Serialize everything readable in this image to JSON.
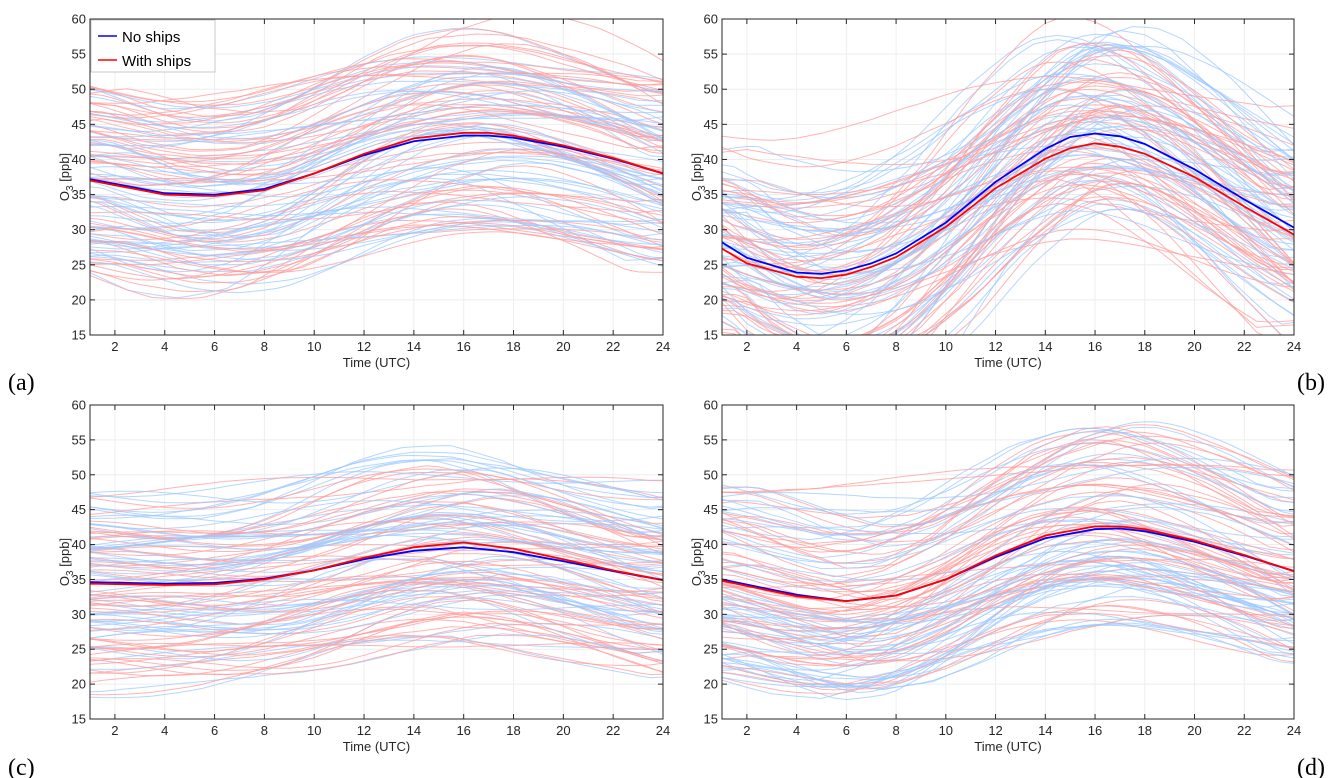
{
  "colors": {
    "no_ships": "#0000ff",
    "with_ships": "#ff0000",
    "ensemble_no_ships": "#9cc8ff",
    "ensemble_with_ships": "#ff9b9b",
    "grid": "#eeeeee"
  },
  "legend": {
    "location": "top-left of panel (a)",
    "entries": [
      "No ships",
      "With ships"
    ]
  },
  "chart_data": [
    {
      "type": "line",
      "panel_label": "(a)",
      "xlabel": "Time (UTC)",
      "ylabel": "O3 [ppb]",
      "xlim": [
        1,
        24
      ],
      "ylim": [
        15,
        60
      ],
      "xticks": [
        2,
        4,
        6,
        8,
        10,
        12,
        14,
        16,
        18,
        20,
        22,
        24
      ],
      "yticks": [
        15,
        20,
        25,
        30,
        35,
        40,
        45,
        50,
        55,
        60
      ],
      "x": [
        1,
        4,
        6,
        8,
        10,
        12,
        14,
        16,
        17,
        18,
        20,
        22,
        24
      ],
      "series": [
        {
          "name": "No ships",
          "values": [
            37.2,
            35.2,
            35.0,
            35.8,
            38.0,
            40.6,
            42.6,
            43.4,
            43.4,
            43.1,
            41.8,
            40.1,
            38.0
          ]
        },
        {
          "name": "With ships",
          "values": [
            37.0,
            35.0,
            34.8,
            35.6,
            38.0,
            40.8,
            43.0,
            43.8,
            43.8,
            43.4,
            42.0,
            40.2,
            38.0
          ]
        }
      ],
      "grid": true
    },
    {
      "type": "line",
      "panel_label": "(b)",
      "xlabel": "Time (UTC)",
      "ylabel": "O3 [ppb]",
      "xlim": [
        1,
        24
      ],
      "ylim": [
        15,
        60
      ],
      "xticks": [
        2,
        4,
        6,
        8,
        10,
        12,
        14,
        16,
        18,
        20,
        22,
        24
      ],
      "yticks": [
        15,
        20,
        25,
        30,
        35,
        40,
        45,
        50,
        55,
        60
      ],
      "x": [
        1,
        2,
        4,
        5,
        6,
        7,
        8,
        10,
        12,
        14,
        15,
        16,
        17,
        18,
        20,
        22,
        24
      ],
      "series": [
        {
          "name": "No ships",
          "values": [
            28.2,
            26.0,
            23.9,
            23.7,
            24.2,
            25.2,
            26.6,
            31.0,
            36.8,
            41.5,
            43.2,
            43.7,
            43.3,
            42.2,
            38.6,
            34.3,
            30.3
          ]
        },
        {
          "name": "With ships",
          "values": [
            27.3,
            25.2,
            23.3,
            23.1,
            23.6,
            24.7,
            26.1,
            30.4,
            35.9,
            40.1,
            41.6,
            42.3,
            41.8,
            40.8,
            37.5,
            33.3,
            29.3
          ]
        }
      ],
      "grid": true
    },
    {
      "type": "line",
      "panel_label": "(c)",
      "xlabel": "Time (UTC)",
      "ylabel": "O3 [ppb]",
      "xlim": [
        1,
        24
      ],
      "ylim": [
        15,
        60
      ],
      "xticks": [
        2,
        4,
        6,
        8,
        10,
        12,
        14,
        16,
        18,
        20,
        22,
        24
      ],
      "yticks": [
        15,
        20,
        25,
        30,
        35,
        40,
        45,
        50,
        55,
        60
      ],
      "x": [
        1,
        4,
        6,
        8,
        10,
        12,
        14,
        16,
        18,
        20,
        22,
        24
      ],
      "series": [
        {
          "name": "No ships",
          "values": [
            34.6,
            34.4,
            34.5,
            35.1,
            36.3,
            37.9,
            39.1,
            39.6,
            38.9,
            37.6,
            36.2,
            34.9
          ]
        },
        {
          "name": "With ships",
          "values": [
            34.4,
            34.2,
            34.3,
            35.0,
            36.3,
            38.1,
            39.6,
            40.3,
            39.4,
            37.9,
            36.3,
            34.9
          ]
        }
      ],
      "grid": true
    },
    {
      "type": "line",
      "panel_label": "(d)",
      "xlabel": "Time (UTC)",
      "ylabel": "O3 [ppb]",
      "xlim": [
        1,
        24
      ],
      "ylim": [
        15,
        60
      ],
      "xticks": [
        2,
        4,
        6,
        8,
        10,
        12,
        14,
        16,
        18,
        20,
        22,
        24
      ],
      "yticks": [
        15,
        20,
        25,
        30,
        35,
        40,
        45,
        50,
        55,
        60
      ],
      "x": [
        1,
        4,
        6,
        8,
        10,
        12,
        14,
        16,
        17,
        18,
        20,
        22,
        24
      ],
      "series": [
        {
          "name": "No ships",
          "values": [
            35.0,
            32.8,
            31.9,
            32.7,
            35.0,
            38.2,
            40.9,
            42.2,
            42.3,
            41.9,
            40.4,
            38.4,
            36.2
          ]
        },
        {
          "name": "With ships",
          "values": [
            34.8,
            32.6,
            31.9,
            32.7,
            35.0,
            38.4,
            41.3,
            42.6,
            42.6,
            42.2,
            40.6,
            38.5,
            36.2
          ]
        }
      ],
      "grid": true
    }
  ]
}
